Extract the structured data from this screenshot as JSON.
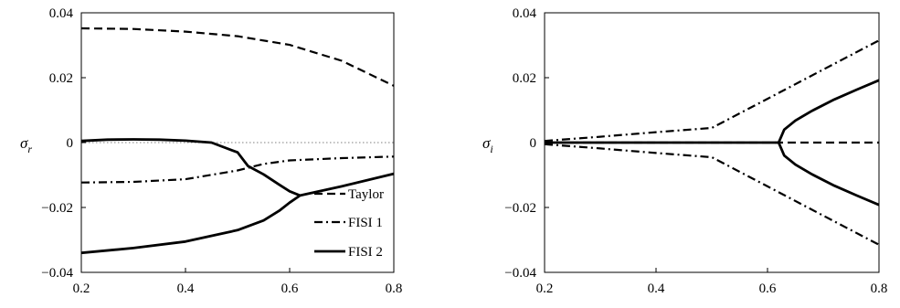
{
  "chart_data": [
    {
      "type": "line",
      "panel": "left",
      "ylabel_symbol": "σ",
      "ylabel_subscript": "r",
      "xlim": [
        0.2,
        0.8
      ],
      "ylim": [
        -0.04,
        0.04
      ],
      "x_ticks": [
        "0.2",
        "0.4",
        "0.6",
        "0.8"
      ],
      "y_ticks": [
        "0.04",
        "0.02",
        "0",
        "−0.02",
        "−0.04"
      ],
      "legend": {
        "position": "bottom-right",
        "entries": [
          "Taylor",
          "FISI 1",
          "FISI 2"
        ]
      },
      "zero_line": {
        "style": "dotted",
        "color": "#999999"
      },
      "series": [
        {
          "name": "Taylor",
          "style": "dashed",
          "x": [
            0.2,
            0.3,
            0.4,
            0.5,
            0.6,
            0.7,
            0.8
          ],
          "y": [
            0.0352,
            0.035,
            0.0342,
            0.0328,
            0.0301,
            0.0252,
            0.0175
          ]
        },
        {
          "name": "FISI 1",
          "style": "dashdot",
          "x": [
            0.2,
            0.3,
            0.4,
            0.5,
            0.55,
            0.6,
            0.7,
            0.8
          ],
          "y": [
            -0.0123,
            -0.0121,
            -0.0113,
            -0.0086,
            -0.0066,
            -0.0055,
            -0.0048,
            -0.0043
          ]
        },
        {
          "name": "FISI 2",
          "style": "solid",
          "role": "upper branch",
          "x": [
            0.2,
            0.25,
            0.3,
            0.35,
            0.4,
            0.45,
            0.5,
            0.52,
            0.55,
            0.58,
            0.6,
            0.62
          ],
          "y": [
            0.0005,
            0.0009,
            0.001,
            0.0009,
            0.0006,
            0.0,
            -0.003,
            -0.0072,
            -0.0098,
            -0.013,
            -0.015,
            -0.0163
          ]
        },
        {
          "name": "",
          "style": "solid",
          "role": "lower branch",
          "x": [
            0.2,
            0.3,
            0.4,
            0.5,
            0.55,
            0.58,
            0.6,
            0.62
          ],
          "y": [
            -0.034,
            -0.0325,
            -0.0305,
            -0.027,
            -0.024,
            -0.021,
            -0.0185,
            -0.0163
          ]
        },
        {
          "name": "",
          "style": "solid",
          "role": "merged branch",
          "x": [
            0.62,
            0.7,
            0.8
          ],
          "y": [
            -0.0163,
            -0.0135,
            -0.0096
          ]
        }
      ]
    },
    {
      "type": "line",
      "panel": "right",
      "ylabel_symbol": "σ",
      "ylabel_subscript": "i",
      "xlim": [
        0.2,
        0.8
      ],
      "ylim": [
        -0.04,
        0.04
      ],
      "x_ticks": [
        "0.2",
        "0.4",
        "0.6",
        "0.8"
      ],
      "y_ticks": [
        "0.04",
        "0.02",
        "0",
        "−0.02",
        "−0.04"
      ],
      "series": [
        {
          "name": "Taylor",
          "style": "dashed",
          "x": [
            0.2,
            0.8
          ],
          "y": [
            0.0,
            0.0
          ]
        },
        {
          "name": "FISI 1",
          "style": "dashdot",
          "role": "upper",
          "x": [
            0.2,
            0.3,
            0.4,
            0.5,
            0.6,
            0.7,
            0.8
          ],
          "y": [
            0.0005,
            0.0018,
            0.0032,
            0.0045,
            0.0135,
            0.0225,
            0.0315
          ]
        },
        {
          "name": "",
          "style": "dashdot",
          "role": "lower",
          "x": [
            0.2,
            0.3,
            0.4,
            0.5,
            0.6,
            0.7,
            0.8
          ],
          "y": [
            -0.0005,
            -0.0018,
            -0.0032,
            -0.0045,
            -0.0135,
            -0.0225,
            -0.0315
          ]
        },
        {
          "name": "FISI 2",
          "style": "solid",
          "role": "zero segment",
          "x": [
            0.2,
            0.62
          ],
          "y": [
            0.0,
            0.0
          ]
        },
        {
          "name": "",
          "style": "solid",
          "role": "upper",
          "x": [
            0.62,
            0.63,
            0.65,
            0.68,
            0.72,
            0.76,
            0.8
          ],
          "y": [
            0.0,
            0.004,
            0.0068,
            0.0098,
            0.0133,
            0.0163,
            0.0192
          ]
        },
        {
          "name": "",
          "style": "solid",
          "role": "lower",
          "x": [
            0.62,
            0.63,
            0.65,
            0.68,
            0.72,
            0.76,
            0.8
          ],
          "y": [
            0.0,
            -0.004,
            -0.0068,
            -0.0098,
            -0.0133,
            -0.0163,
            -0.0192
          ]
        }
      ]
    }
  ]
}
